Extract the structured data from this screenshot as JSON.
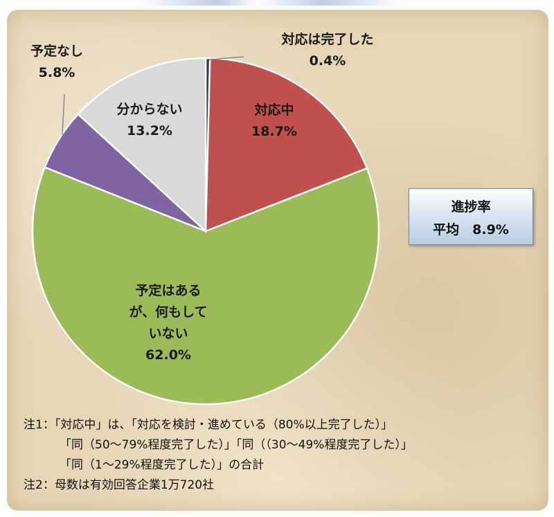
{
  "chart_data": {
    "type": "pie",
    "slices": [
      {
        "label_lines": [
          "対応は完了した"
        ],
        "value": 0.4,
        "value_label": "0.4%",
        "color": "#2b3a56"
      },
      {
        "label_lines": [
          "対応中"
        ],
        "value": 18.7,
        "value_label": "18.7%",
        "color": "#c0504d"
      },
      {
        "label_lines": [
          "予定はある",
          "が、何もして",
          "いない"
        ],
        "value": 62.0,
        "value_label": "62.0%",
        "color": "#9bbb59"
      },
      {
        "label_lines": [
          "予定なし"
        ],
        "value": 5.8,
        "value_label": "5.8%",
        "color": "#8064a2"
      },
      {
        "label_lines": [
          "分からない"
        ],
        "value": 13.2,
        "value_label": "13.2%",
        "color": "#d9d9d9"
      }
    ],
    "start_direction": "top",
    "direction": "clockwise"
  },
  "average_box": {
    "line1": "進捗率",
    "line2": "平均　8.9%"
  },
  "notes": [
    "注1：「対応中」は、「対応を検討・進めている（80%以上完了した）」",
    "「同（50～79%程度完了した）」「同（（30～49%程度完了した）」",
    "「同（1～29%程度完了した）」の合計",
    "注2：母数は有効回答企業1万720社"
  ]
}
